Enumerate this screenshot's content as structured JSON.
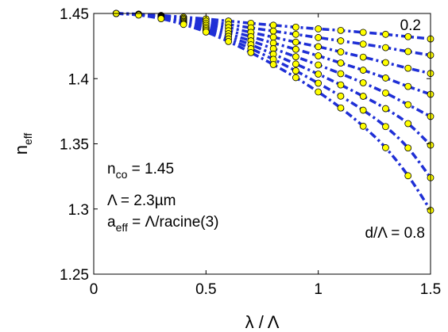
{
  "chart_data": {
    "type": "line",
    "xlabel": "λ / Λ",
    "ylabel": {
      "base": "n",
      "sub": "eff"
    },
    "xlim": [
      0,
      1.5
    ],
    "ylim": [
      1.25,
      1.45
    ],
    "xticks": [
      0,
      0.5,
      1,
      1.5
    ],
    "yticks": [
      1.25,
      1.3,
      1.35,
      1.4,
      1.45
    ],
    "xtick_labels": [
      "0",
      "0.5",
      "1",
      "1.5"
    ],
    "ytick_labels": [
      "1.25",
      "1.3",
      "1.35",
      "1.4",
      "1.45"
    ],
    "grid": false,
    "line_color": "#1f2fd6",
    "marker_fill": "#ffff00",
    "marker_edge": "#000000",
    "x": [
      0.1,
      0.2,
      0.3,
      0.4,
      0.5,
      0.6,
      0.7,
      0.8,
      0.9,
      1.0,
      1.1,
      1.2,
      1.3,
      1.4,
      1.5
    ],
    "series": [
      {
        "values": [
          1.45,
          1.4495,
          1.4485,
          1.4472,
          1.4458,
          1.4442,
          1.4425,
          1.441,
          1.4395,
          1.4382,
          1.437,
          1.4355,
          1.434,
          1.4322,
          1.4305
        ]
      },
      {
        "values": [
          1.45,
          1.4494,
          1.4481,
          1.4463,
          1.4441,
          1.4416,
          1.439,
          1.4365,
          1.434,
          1.4315,
          1.429,
          1.4265,
          1.4238,
          1.4208,
          1.418
        ]
      },
      {
        "values": [
          1.45,
          1.4493,
          1.4477,
          1.4455,
          1.4425,
          1.4392,
          1.4355,
          1.4318,
          1.428,
          1.4245,
          1.4205,
          1.4165,
          1.4123,
          1.408,
          1.404
        ]
      },
      {
        "values": [
          1.45,
          1.4492,
          1.4473,
          1.4446,
          1.441,
          1.4368,
          1.4322,
          1.4273,
          1.4225,
          1.4175,
          1.412,
          1.4065,
          1.4005,
          1.394,
          1.388
        ]
      },
      {
        "values": [
          1.45,
          1.4491,
          1.447,
          1.4438,
          1.4395,
          1.4345,
          1.429,
          1.423,
          1.4168,
          1.4105,
          1.4038,
          1.3968,
          1.389,
          1.38,
          1.371
        ]
      },
      {
        "values": [
          1.45,
          1.449,
          1.4466,
          1.443,
          1.4382,
          1.4325,
          1.426,
          1.4188,
          1.4112,
          1.4035,
          1.3952,
          1.3865,
          1.377,
          1.3655,
          1.349
        ]
      },
      {
        "values": [
          1.45,
          1.4489,
          1.4463,
          1.4423,
          1.437,
          1.4305,
          1.423,
          1.4148,
          1.406,
          1.3965,
          1.3866,
          1.3758,
          1.3632,
          1.3468,
          1.324
        ]
      },
      {
        "values": [
          1.45,
          1.4488,
          1.446,
          1.4416,
          1.4358,
          1.4285,
          1.42,
          1.4108,
          1.4008,
          1.3898,
          1.3775,
          1.3635,
          1.347,
          1.3255,
          1.299
        ]
      }
    ],
    "annotations": {
      "top_series_label": "0.2",
      "bottom_series_label": "d/Λ = 0.8",
      "nco": {
        "base": "n",
        "sub": "co",
        "rest": " = 1.45"
      },
      "period": "Λ = 2.3µm",
      "aeff": {
        "base": "a",
        "sub": "eff",
        "rest": " = Λ/racine(3)"
      }
    }
  }
}
